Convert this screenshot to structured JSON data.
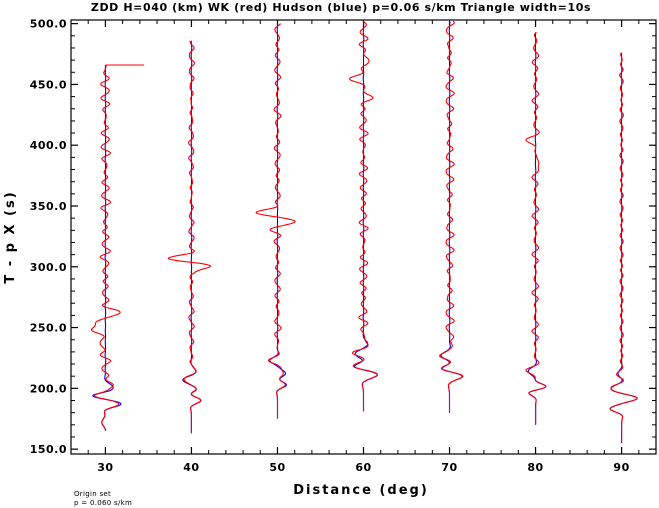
{
  "chart_data": {
    "type": "line",
    "title": "ZDD H=040 (km) WK (red) Hudson (blue) p=0.06 s/km Triangle width=10s",
    "xlabel": "Distance (deg)",
    "ylabel": "T - p X (s)",
    "xlim": [
      26,
      94
    ],
    "ylim": [
      146,
      503
    ],
    "x_ticks": [
      30,
      40,
      50,
      60,
      70,
      80,
      90
    ],
    "x_tick_labels": [
      "30",
      "40",
      "50",
      "60",
      "70",
      "80",
      "90"
    ],
    "y_ticks": [
      150,
      200,
      250,
      300,
      350,
      400,
      450,
      500
    ],
    "y_tick_labels": [
      "150.0",
      "200.0",
      "250.0",
      "300.0",
      "350.0",
      "400.0",
      "450.0",
      "500.0"
    ],
    "grid": false,
    "series": [
      {
        "name": "WK",
        "color": "#ff0000"
      },
      {
        "name": "Hudson",
        "color": "#0000ff"
      }
    ],
    "traces": [
      {
        "distance": 30,
        "t_start": 165,
        "t_end": 466,
        "onset": 186,
        "blue": {
          "t_start": 165,
          "t_end": 466,
          "wiggles": [
            [
              172,
              -0.6,
              6
            ],
            [
              187,
              2.5,
              5
            ],
            [
              194,
              -1.8,
              4
            ],
            [
              201,
              1.2,
              6
            ]
          ],
          "noise": 0.05
        },
        "red": {
          "t_start": 165,
          "t_end": 466,
          "wiggles": [
            [
              172,
              -0.6,
              6
            ],
            [
              187,
              2.2,
              5
            ],
            [
              194,
              -1.6,
              4
            ],
            [
              203,
              1.1,
              7
            ],
            [
              250,
              -2.2,
              10
            ],
            [
              262,
              1.6,
              8
            ],
            [
              235,
              -1.0,
              8
            ]
          ],
          "noise": 0.9,
          "tail_to": 34.5
        },
        "color_blue": "#0000ff",
        "color_red": "#ff0000"
      },
      {
        "distance": 40,
        "t_start": 163,
        "t_end": 486,
        "onset": 185,
        "blue": {
          "t_start": 163,
          "t_end": 486,
          "wiggles": [
            [
              190,
              1.6,
              5
            ],
            [
              199,
              0.8,
              4
            ],
            [
              207,
              -1.4,
              5
            ],
            [
              214,
              0.6,
              6
            ]
          ],
          "noise": 0.05
        },
        "red": {
          "t_start": 163,
          "t_end": 486,
          "wiggles": [
            [
              190,
              1.5,
              5
            ],
            [
              199,
              0.9,
              4
            ],
            [
              207,
              -1.3,
              5
            ],
            [
              214,
              0.6,
              6
            ],
            [
              301,
              2.8,
              5
            ],
            [
              307,
              -3.6,
              5
            ],
            [
              296,
              0.8,
              4
            ]
          ],
          "noise": 0.5
        },
        "color_blue": "#0000ff",
        "color_red": "#ff0000"
      },
      {
        "distance": 50,
        "t_start": 175,
        "t_end": 500,
        "onset": 200,
        "blue": {
          "t_start": 175,
          "t_end": 500,
          "wiggles": [
            [
              203,
              1.6,
              5
            ],
            [
              212,
              1.4,
              6
            ],
            [
              223,
              -1.2,
              5
            ]
          ],
          "noise": 0.05
        },
        "red": {
          "t_start": 175,
          "t_end": 500,
          "wiggles": [
            [
              203,
              1.4,
              5
            ],
            [
              212,
              1.2,
              6
            ],
            [
              223,
              -1.0,
              5
            ],
            [
              337,
              2.6,
              5
            ],
            [
              345,
              -3.4,
              5
            ],
            [
              330,
              -0.8,
              4
            ]
          ],
          "noise": 0.6
        },
        "color_blue": "#0000ff",
        "color_red": "#ff0000"
      },
      {
        "distance": 60,
        "t_start": 181,
        "t_end": 502,
        "onset": 205,
        "blue": {
          "t_start": 181,
          "t_end": 502,
          "wiggles": [
            [
              211,
              2.2,
              6
            ],
            [
              218,
              -1.4,
              5
            ],
            [
              228,
              -1.4,
              6
            ],
            [
              237,
              0.6,
              5
            ]
          ],
          "noise": 0.05
        },
        "red": {
          "t_start": 181,
          "t_end": 502,
          "wiggles": [
            [
              211,
              2.2,
              6
            ],
            [
              218,
              -1.4,
              5
            ],
            [
              228,
              -1.4,
              6
            ],
            [
              237,
              0.6,
              5
            ],
            [
              455,
              -1.6,
              8
            ],
            [
              440,
              1.2,
              6
            ],
            [
              470,
              0.8,
              6
            ]
          ],
          "noise": 0.8
        },
        "color_blue": "#0000ff",
        "color_red": "#ff0000"
      },
      {
        "distance": 70,
        "t_start": 180,
        "t_end": 502,
        "onset": 205,
        "blue": {
          "t_start": 180,
          "t_end": 502,
          "wiggles": [
            [
              210,
              2.0,
              6
            ],
            [
              216,
              -1.2,
              5
            ],
            [
              227,
              -1.4,
              6
            ]
          ],
          "noise": 0.05
        },
        "red": {
          "t_start": 180,
          "t_end": 502,
          "wiggles": [
            [
              210,
              2.0,
              6
            ],
            [
              216,
              -1.2,
              5
            ],
            [
              227,
              -1.4,
              6
            ],
            [
              238,
              0.6,
              6
            ]
          ],
          "noise": 0.8
        },
        "color_blue": "#0000ff",
        "color_red": "#ff0000"
      },
      {
        "distance": 80,
        "t_start": 170,
        "t_end": 493,
        "onset": 195,
        "blue": {
          "t_start": 170,
          "t_end": 493,
          "wiggles": [
            [
              201,
              1.8,
              5
            ],
            [
              197,
              -1.2,
              5
            ],
            [
              214,
              -1.2,
              6
            ]
          ],
          "noise": 0.05
        },
        "red": {
          "t_start": 170,
          "t_end": 493,
          "wiggles": [
            [
              201,
              1.8,
              5
            ],
            [
              197,
              -1.2,
              5
            ],
            [
              214,
              -1.2,
              6
            ],
            [
              403,
              -1.2,
              6
            ],
            [
              385,
              0.8,
              6
            ]
          ],
          "noise": 0.6
        },
        "color_blue": "#0000ff",
        "color_red": "#ff0000"
      },
      {
        "distance": 90,
        "t_start": 155,
        "t_end": 476,
        "onset": 180,
        "blue": {
          "t_start": 155,
          "t_end": 476,
          "wiggles": [
            [
              183,
              -1.8,
              5
            ],
            [
              192,
              2.4,
              5
            ],
            [
              200,
              -1.6,
              6
            ],
            [
              212,
              -0.6,
              6
            ]
          ],
          "noise": 0.05
        },
        "red": {
          "t_start": 155,
          "t_end": 476,
          "wiggles": [
            [
              183,
              -1.8,
              5
            ],
            [
              192,
              2.4,
              5
            ],
            [
              200,
              -1.6,
              6
            ],
            [
              212,
              -0.6,
              6
            ]
          ],
          "noise": 0.35
        },
        "color_blue": "#0000ff",
        "color_red": "#ff0000"
      }
    ]
  },
  "notes": {
    "line1": "Origin set",
    "line2": "p = 0.060 s/km"
  }
}
